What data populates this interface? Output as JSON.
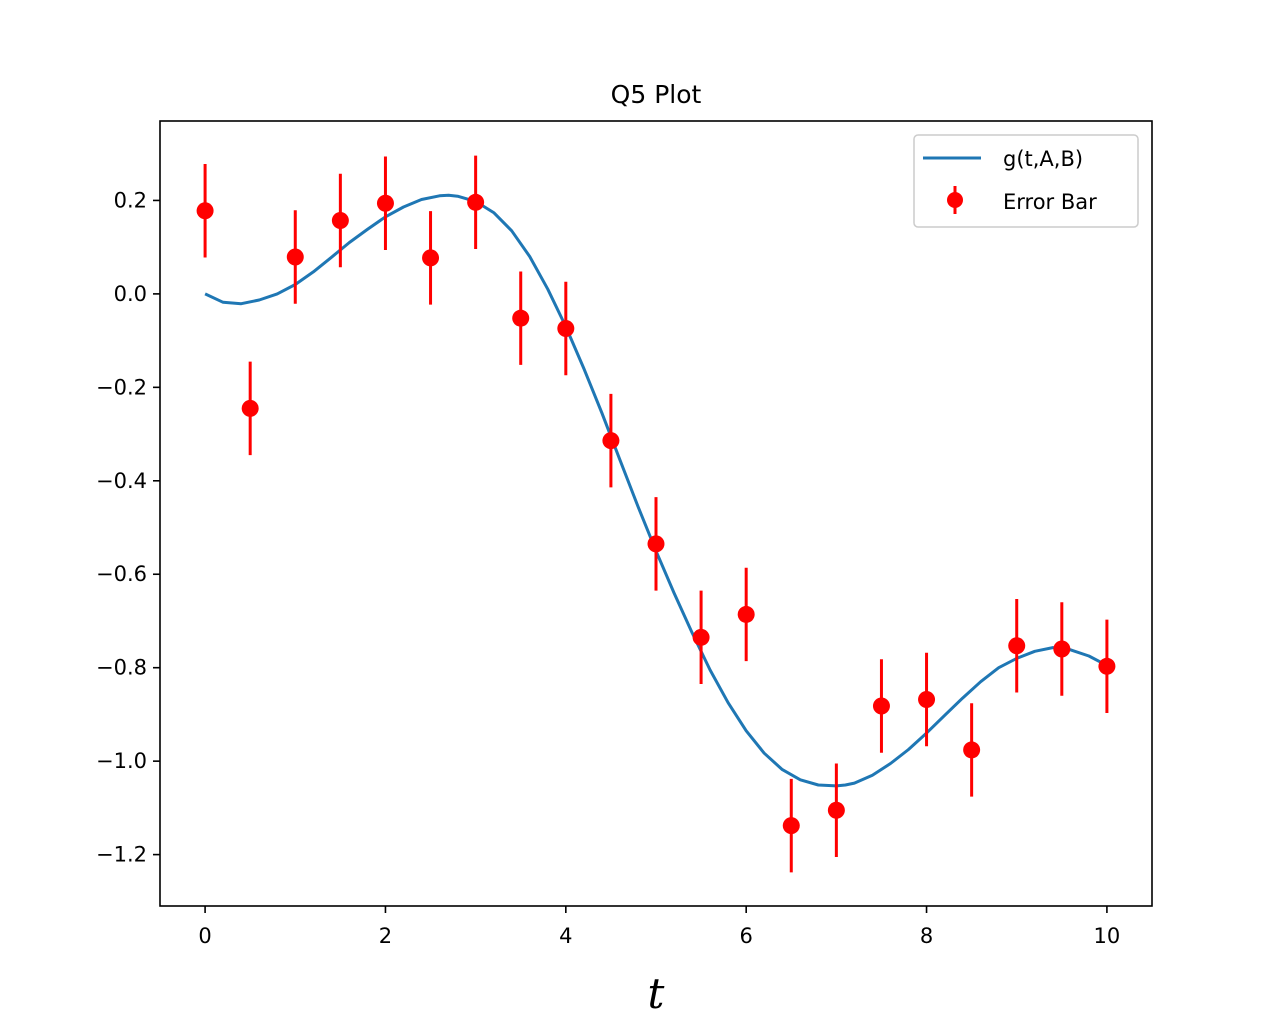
{
  "chart_data": {
    "type": "scatter",
    "title": "Q5 Plot",
    "xlabel": "t",
    "ylabel": "",
    "xlim": [
      -0.5,
      10.5
    ],
    "ylim": [
      -1.31,
      0.37
    ],
    "xticks": [
      0,
      2,
      4,
      6,
      8,
      10
    ],
    "xtick_labels": [
      "0",
      "2",
      "4",
      "6",
      "8",
      "10"
    ],
    "yticks": [
      0.2,
      0.0,
      -0.2,
      -0.4,
      -0.6,
      -0.8,
      -1.0,
      -1.2
    ],
    "ytick_labels": [
      "0.2",
      "0.0",
      "−0.2",
      "−0.4",
      "−0.6",
      "−0.8",
      "−1.0",
      "−1.2"
    ],
    "grid": false,
    "legend_position": "top-right",
    "series": [
      {
        "name": "g(t,A,B)",
        "kind": "line",
        "color": "#1f77b4",
        "x": [
          0,
          0.2,
          0.4,
          0.6,
          0.8,
          1.0,
          1.2,
          1.4,
          1.6,
          1.8,
          2.0,
          2.2,
          2.4,
          2.6,
          2.7,
          2.8,
          3.0,
          3.2,
          3.4,
          3.6,
          3.8,
          4.0,
          4.2,
          4.4,
          4.6,
          4.8,
          5.0,
          5.2,
          5.4,
          5.6,
          5.8,
          6.0,
          6.2,
          6.4,
          6.6,
          6.8,
          7.0,
          7.1,
          7.2,
          7.4,
          7.6,
          7.8,
          8.0,
          8.2,
          8.4,
          8.6,
          8.8,
          9.0,
          9.2,
          9.4,
          9.5,
          9.6,
          9.8,
          10.0
        ],
        "y": [
          0.0,
          -0.018,
          -0.021,
          -0.013,
          0.0,
          0.02,
          0.047,
          0.078,
          0.11,
          0.138,
          0.165,
          0.186,
          0.202,
          0.21,
          0.211,
          0.209,
          0.198,
          0.174,
          0.135,
          0.08,
          0.01,
          -0.07,
          -0.16,
          -0.255,
          -0.355,
          -0.455,
          -0.55,
          -0.64,
          -0.725,
          -0.805,
          -0.875,
          -0.935,
          -0.983,
          -1.018,
          -1.04,
          -1.051,
          -1.053,
          -1.051,
          -1.047,
          -1.03,
          -1.005,
          -0.975,
          -0.94,
          -0.902,
          -0.865,
          -0.83,
          -0.8,
          -0.78,
          -0.765,
          -0.757,
          -0.758,
          -0.762,
          -0.775,
          -0.795
        ]
      },
      {
        "name": "Error Bar",
        "kind": "errorbar",
        "color": "#ff0000",
        "x": [
          0,
          0.5,
          1.0,
          1.5,
          2.0,
          2.5,
          3.0,
          3.5,
          4.0,
          4.5,
          5.0,
          5.5,
          6.0,
          6.5,
          7.0,
          7.5,
          8.0,
          8.5,
          9.0,
          9.5,
          10.0
        ],
        "y": [
          0.178,
          -0.245,
          0.079,
          0.157,
          0.194,
          0.077,
          0.196,
          -0.052,
          -0.074,
          -0.314,
          -0.535,
          -0.735,
          -0.686,
          -1.138,
          -1.105,
          -0.882,
          -0.868,
          -0.976,
          -0.753,
          -0.76,
          -0.797
        ],
        "yerr": 0.1
      }
    ]
  }
}
